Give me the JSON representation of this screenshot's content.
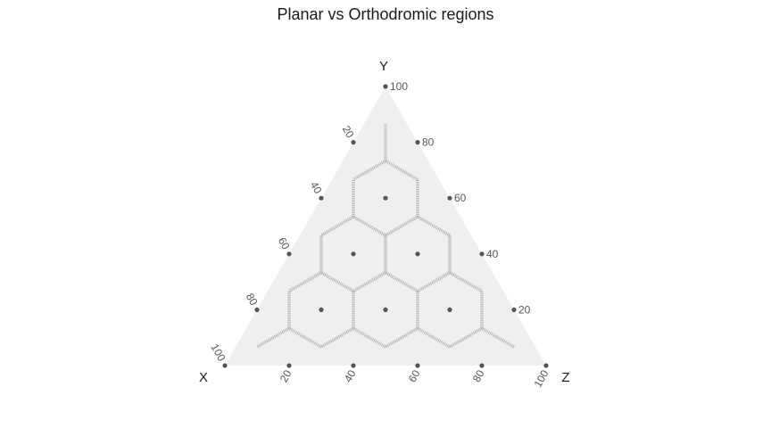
{
  "chart_data": {
    "type": "scatter",
    "subtype": "ternary",
    "title": "Planar vs Orthodromic regions",
    "axes": {
      "x": "X",
      "y": "Y",
      "z": "Z"
    },
    "ticks": [
      20,
      40,
      60,
      80,
      100
    ],
    "corner_points": [
      {
        "x": 100,
        "y": 0,
        "z": 0
      },
      {
        "x": 0,
        "y": 100,
        "z": 0
      },
      {
        "x": 0,
        "y": 0,
        "z": 100
      }
    ],
    "points": [
      {
        "x": 80,
        "y": 0,
        "z": 20
      },
      {
        "x": 60,
        "y": 0,
        "z": 40
      },
      {
        "x": 40,
        "y": 0,
        "z": 60
      },
      {
        "x": 20,
        "y": 0,
        "z": 80
      },
      {
        "x": 0,
        "y": 20,
        "z": 80
      },
      {
        "x": 0,
        "y": 40,
        "z": 60
      },
      {
        "x": 0,
        "y": 60,
        "z": 40
      },
      {
        "x": 0,
        "y": 80,
        "z": 20
      },
      {
        "x": 20,
        "y": 80,
        "z": 0
      },
      {
        "x": 40,
        "y": 60,
        "z": 0
      },
      {
        "x": 60,
        "y": 40,
        "z": 0
      },
      {
        "x": 80,
        "y": 20,
        "z": 0
      },
      {
        "x": 60,
        "y": 20,
        "z": 20
      },
      {
        "x": 40,
        "y": 20,
        "z": 40
      },
      {
        "x": 20,
        "y": 20,
        "z": 60
      },
      {
        "x": 40,
        "y": 40,
        "z": 20
      },
      {
        "x": 20,
        "y": 40,
        "z": 40
      },
      {
        "x": 20,
        "y": 60,
        "z": 20
      }
    ],
    "colors": {
      "background": "#efefef",
      "region_edge": "#b0b0b0",
      "point": "#555555"
    }
  }
}
